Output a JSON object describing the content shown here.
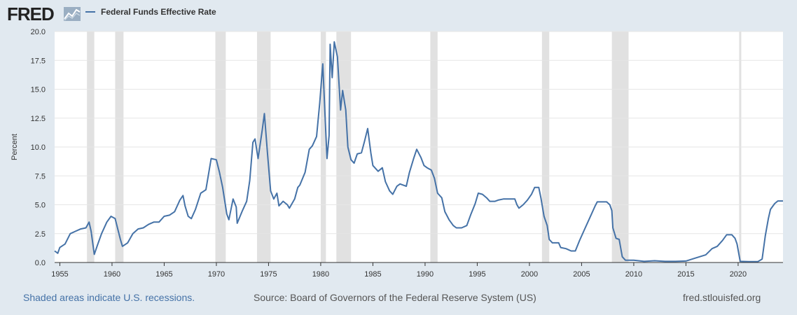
{
  "header": {
    "logo_text": "FRED",
    "logo_icon": "fred-chart-icon",
    "legend_label": "Federal Funds Effective Rate"
  },
  "footer": {
    "recession_note": "Shaded areas indicate U.S. recessions.",
    "source": "Source: Board of Governors of the Federal Reserve System (US)",
    "site": "fred.stlouisfed.org"
  },
  "colors": {
    "background": "#e1e9f0",
    "series": "#4572a7",
    "recession": "#e1e1e1",
    "grid": "#e6e6e6"
  },
  "chart_data": {
    "type": "line",
    "title": "",
    "xlabel": "",
    "ylabel": "Percent",
    "xlim": [
      1954.5,
      2024.3
    ],
    "ylim": [
      0,
      20
    ],
    "x_ticks": [
      "1955",
      "1960",
      "1965",
      "1970",
      "1975",
      "1980",
      "1985",
      "1990",
      "1995",
      "2000",
      "2005",
      "2010",
      "2015",
      "2020"
    ],
    "y_ticks": [
      "0.0",
      "2.5",
      "5.0",
      "7.5",
      "10.0",
      "12.5",
      "15.0",
      "17.5",
      "20.0"
    ],
    "grid": "horizontal",
    "legend": "top-left",
    "recessions": [
      [
        1957.6,
        1958.3
      ],
      [
        1960.3,
        1961.1
      ],
      [
        1969.9,
        1970.9
      ],
      [
        1973.9,
        1975.2
      ],
      [
        1980.0,
        1980.5
      ],
      [
        1981.5,
        1982.9
      ],
      [
        1990.5,
        1991.2
      ],
      [
        2001.2,
        2001.9
      ],
      [
        2007.9,
        2009.5
      ],
      [
        2020.1,
        2020.3
      ]
    ],
    "series": [
      {
        "name": "Federal Funds Effective Rate",
        "points": [
          [
            1954.5,
            1.0
          ],
          [
            1954.8,
            0.8
          ],
          [
            1955.0,
            1.3
          ],
          [
            1955.5,
            1.6
          ],
          [
            1956.0,
            2.5
          ],
          [
            1956.5,
            2.7
          ],
          [
            1957.0,
            2.9
          ],
          [
            1957.5,
            3.0
          ],
          [
            1957.8,
            3.5
          ],
          [
            1958.0,
            2.7
          ],
          [
            1958.3,
            0.7
          ],
          [
            1958.6,
            1.5
          ],
          [
            1959.0,
            2.5
          ],
          [
            1959.5,
            3.5
          ],
          [
            1959.9,
            4.0
          ],
          [
            1960.3,
            3.8
          ],
          [
            1960.8,
            2.0
          ],
          [
            1961.0,
            1.4
          ],
          [
            1961.5,
            1.7
          ],
          [
            1962.0,
            2.5
          ],
          [
            1962.5,
            2.9
          ],
          [
            1963.0,
            3.0
          ],
          [
            1963.5,
            3.3
          ],
          [
            1964.0,
            3.5
          ],
          [
            1964.5,
            3.5
          ],
          [
            1965.0,
            4.0
          ],
          [
            1965.5,
            4.1
          ],
          [
            1966.0,
            4.4
          ],
          [
            1966.5,
            5.4
          ],
          [
            1966.8,
            5.8
          ],
          [
            1967.0,
            4.9
          ],
          [
            1967.3,
            4.0
          ],
          [
            1967.6,
            3.8
          ],
          [
            1968.0,
            4.6
          ],
          [
            1968.5,
            6.0
          ],
          [
            1969.0,
            6.3
          ],
          [
            1969.5,
            9.0
          ],
          [
            1970.0,
            8.9
          ],
          [
            1970.3,
            7.8
          ],
          [
            1970.6,
            6.5
          ],
          [
            1971.0,
            4.2
          ],
          [
            1971.2,
            3.7
          ],
          [
            1971.6,
            5.5
          ],
          [
            1971.9,
            4.8
          ],
          [
            1972.0,
            3.4
          ],
          [
            1972.5,
            4.5
          ],
          [
            1972.9,
            5.3
          ],
          [
            1973.2,
            7.1
          ],
          [
            1973.5,
            10.4
          ],
          [
            1973.7,
            10.7
          ],
          [
            1974.0,
            9.0
          ],
          [
            1974.4,
            11.5
          ],
          [
            1974.6,
            12.9
          ],
          [
            1974.9,
            9.4
          ],
          [
            1975.2,
            6.2
          ],
          [
            1975.5,
            5.5
          ],
          [
            1975.8,
            6.0
          ],
          [
            1976.0,
            4.9
          ],
          [
            1976.4,
            5.3
          ],
          [
            1976.8,
            5.0
          ],
          [
            1977.0,
            4.7
          ],
          [
            1977.5,
            5.5
          ],
          [
            1977.8,
            6.5
          ],
          [
            1978.0,
            6.7
          ],
          [
            1978.5,
            7.8
          ],
          [
            1978.9,
            9.8
          ],
          [
            1979.2,
            10.1
          ],
          [
            1979.6,
            10.9
          ],
          [
            1979.9,
            13.8
          ],
          [
            1980.2,
            17.2
          ],
          [
            1980.4,
            13.0
          ],
          [
            1980.6,
            9.0
          ],
          [
            1980.8,
            11.0
          ],
          [
            1980.9,
            18.9
          ],
          [
            1981.1,
            16.0
          ],
          [
            1981.3,
            19.1
          ],
          [
            1981.6,
            17.8
          ],
          [
            1981.9,
            13.2
          ],
          [
            1982.1,
            14.9
          ],
          [
            1982.4,
            13.2
          ],
          [
            1982.6,
            10.0
          ],
          [
            1982.9,
            8.9
          ],
          [
            1983.2,
            8.6
          ],
          [
            1983.5,
            9.4
          ],
          [
            1983.9,
            9.5
          ],
          [
            1984.2,
            10.5
          ],
          [
            1984.5,
            11.6
          ],
          [
            1984.8,
            9.5
          ],
          [
            1985.0,
            8.4
          ],
          [
            1985.5,
            7.9
          ],
          [
            1985.9,
            8.2
          ],
          [
            1986.2,
            7.0
          ],
          [
            1986.6,
            6.2
          ],
          [
            1986.9,
            5.9
          ],
          [
            1987.3,
            6.6
          ],
          [
            1987.6,
            6.8
          ],
          [
            1987.9,
            6.7
          ],
          [
            1988.2,
            6.6
          ],
          [
            1988.5,
            7.8
          ],
          [
            1988.9,
            9.0
          ],
          [
            1989.2,
            9.8
          ],
          [
            1989.6,
            9.1
          ],
          [
            1989.9,
            8.4
          ],
          [
            1990.2,
            8.2
          ],
          [
            1990.6,
            8.0
          ],
          [
            1990.9,
            7.3
          ],
          [
            1991.2,
            6.0
          ],
          [
            1991.6,
            5.6
          ],
          [
            1991.9,
            4.4
          ],
          [
            1992.3,
            3.7
          ],
          [
            1992.7,
            3.2
          ],
          [
            1993.0,
            3.0
          ],
          [
            1993.5,
            3.0
          ],
          [
            1994.0,
            3.2
          ],
          [
            1994.4,
            4.2
          ],
          [
            1994.8,
            5.1
          ],
          [
            1995.1,
            6.0
          ],
          [
            1995.5,
            5.9
          ],
          [
            1995.9,
            5.6
          ],
          [
            1996.2,
            5.3
          ],
          [
            1996.7,
            5.3
          ],
          [
            1997.0,
            5.4
          ],
          [
            1997.5,
            5.5
          ],
          [
            1998.0,
            5.5
          ],
          [
            1998.6,
            5.5
          ],
          [
            1998.8,
            5.0
          ],
          [
            1999.0,
            4.7
          ],
          [
            1999.4,
            5.0
          ],
          [
            1999.8,
            5.4
          ],
          [
            2000.2,
            5.9
          ],
          [
            2000.5,
            6.5
          ],
          [
            2000.9,
            6.5
          ],
          [
            2001.1,
            5.6
          ],
          [
            2001.4,
            4.0
          ],
          [
            2001.7,
            3.2
          ],
          [
            2001.9,
            2.0
          ],
          [
            2002.2,
            1.7
          ],
          [
            2002.8,
            1.7
          ],
          [
            2003.0,
            1.3
          ],
          [
            2003.5,
            1.2
          ],
          [
            2004.0,
            1.0
          ],
          [
            2004.4,
            1.0
          ],
          [
            2004.8,
            1.9
          ],
          [
            2005.3,
            2.9
          ],
          [
            2005.8,
            3.9
          ],
          [
            2006.3,
            4.9
          ],
          [
            2006.5,
            5.25
          ],
          [
            2007.4,
            5.25
          ],
          [
            2007.7,
            5.0
          ],
          [
            2007.9,
            4.5
          ],
          [
            2008.0,
            3.0
          ],
          [
            2008.3,
            2.1
          ],
          [
            2008.6,
            2.0
          ],
          [
            2008.9,
            0.5
          ],
          [
            2009.2,
            0.2
          ],
          [
            2010.0,
            0.2
          ],
          [
            2011.0,
            0.1
          ],
          [
            2012.0,
            0.15
          ],
          [
            2013.0,
            0.1
          ],
          [
            2014.0,
            0.1
          ],
          [
            2015.0,
            0.13
          ],
          [
            2015.9,
            0.38
          ],
          [
            2016.9,
            0.66
          ],
          [
            2017.5,
            1.2
          ],
          [
            2018.0,
            1.4
          ],
          [
            2018.5,
            1.9
          ],
          [
            2018.9,
            2.4
          ],
          [
            2019.4,
            2.4
          ],
          [
            2019.7,
            2.1
          ],
          [
            2019.9,
            1.6
          ],
          [
            2020.2,
            0.1
          ],
          [
            2021.0,
            0.08
          ],
          [
            2021.9,
            0.08
          ],
          [
            2022.3,
            0.3
          ],
          [
            2022.6,
            2.3
          ],
          [
            2022.9,
            3.8
          ],
          [
            2023.1,
            4.6
          ],
          [
            2023.5,
            5.1
          ],
          [
            2023.8,
            5.33
          ],
          [
            2024.3,
            5.33
          ]
        ]
      }
    ]
  }
}
